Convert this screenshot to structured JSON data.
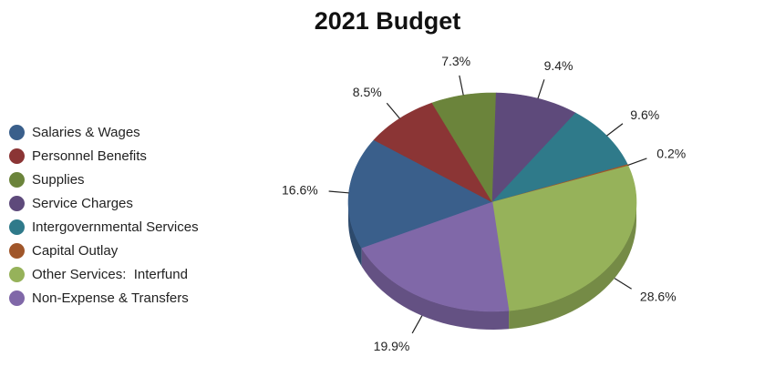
{
  "chart_data": {
    "type": "pie",
    "title": "2021 Budget",
    "three_d": true,
    "legend_position": "left",
    "slices": [
      {
        "name": "Salaries & Wages",
        "value": 16.6,
        "label": "16.6%",
        "color": "#3A5F8B"
      },
      {
        "name": "Personnel Benefits",
        "value": 8.5,
        "label": "8.5%",
        "color": "#8B3535"
      },
      {
        "name": "Supplies",
        "value": 7.3,
        "label": "7.3%",
        "color": "#6B843B"
      },
      {
        "name": "Service Charges",
        "value": 9.4,
        "label": "9.4%",
        "color": "#5E4A7B"
      },
      {
        "name": "Intergovernmental Services",
        "value": 9.6,
        "label": "9.6%",
        "color": "#2F7A8A"
      },
      {
        "name": "Capital Outlay",
        "value": 0.2,
        "label": "0.2%",
        "color": "#A0562A"
      },
      {
        "name": "Other Services:  Interfund",
        "value": 28.6,
        "label": "28.6%",
        "color": "#96B25A"
      },
      {
        "name": "Non-Expense & Transfers",
        "value": 19.9,
        "label": "19.9%",
        "color": "#8068A8"
      }
    ]
  }
}
